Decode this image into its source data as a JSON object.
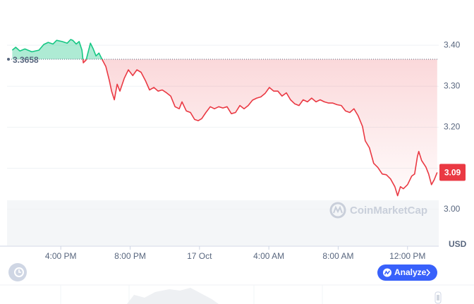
{
  "chart_data": {
    "type": "line",
    "x": [
      13.2,
      13.4,
      13.64,
      13.93,
      14.33,
      14.74,
      15.02,
      15.27,
      15.55,
      15.76,
      16.08,
      16.37,
      16.57,
      16.69,
      16.89,
      17.06,
      17.22,
      17.3,
      17.46,
      17.71,
      17.87,
      18.03,
      18.2,
      18.4,
      18.6,
      18.8,
      18.93,
      19.09,
      19.25,
      19.41,
      19.66,
      19.9,
      20.15,
      20.39,
      20.63,
      20.88,
      21.12,
      21.37,
      21.61,
      21.85,
      22.1,
      22.34,
      22.59,
      22.83,
      22.99,
      23.24,
      23.48,
      23.72,
      23.93,
      24.13,
      24.37,
      24.62,
      24.86,
      25.11,
      25.35,
      25.59,
      25.84,
      26.08,
      26.33,
      26.57,
      26.81,
      27.06,
      27.3,
      27.54,
      27.79,
      28.03,
      28.28,
      28.52,
      28.76,
      29.01,
      29.25,
      29.5,
      29.74,
      29.98,
      30.23,
      30.47,
      30.72,
      30.96,
      31.2,
      31.45,
      31.69,
      31.93,
      32.18,
      32.42,
      32.67,
      32.91,
      33.15,
      33.4,
      33.56,
      33.8,
      34.05,
      34.29,
      34.54,
      34.78,
      35.02,
      35.27,
      35.43,
      35.59,
      35.76,
      36.0,
      36.24,
      36.41,
      36.57,
      36.65,
      36.81,
      37.06,
      37.22,
      37.38,
      37.54,
      37.71
    ],
    "values": [
      3.388,
      3.395,
      3.386,
      3.391,
      3.384,
      3.388,
      3.402,
      3.407,
      3.403,
      3.412,
      3.409,
      3.405,
      3.414,
      3.412,
      3.403,
      3.409,
      3.388,
      3.357,
      3.364,
      3.405,
      3.391,
      3.374,
      3.381,
      3.364,
      3.348,
      3.314,
      3.288,
      3.267,
      3.305,
      3.288,
      3.319,
      3.34,
      3.326,
      3.34,
      3.334,
      3.314,
      3.291,
      3.297,
      3.288,
      3.291,
      3.284,
      3.276,
      3.25,
      3.245,
      3.262,
      3.24,
      3.236,
      3.219,
      3.216,
      3.221,
      3.236,
      3.25,
      3.245,
      3.25,
      3.247,
      3.25,
      3.233,
      3.236,
      3.253,
      3.245,
      3.253,
      3.266,
      3.271,
      3.274,
      3.283,
      3.297,
      3.288,
      3.288,
      3.276,
      3.284,
      3.267,
      3.257,
      3.253,
      3.267,
      3.262,
      3.271,
      3.262,
      3.267,
      3.262,
      3.259,
      3.259,
      3.255,
      3.253,
      3.24,
      3.236,
      3.245,
      3.228,
      3.202,
      3.167,
      3.15,
      3.112,
      3.102,
      3.086,
      3.084,
      3.074,
      3.055,
      3.033,
      3.055,
      3.05,
      3.06,
      3.081,
      3.086,
      3.129,
      3.141,
      3.119,
      3.103,
      3.086,
      3.06,
      3.072,
      3.09
    ],
    "xlim": [
      12.9,
      37.8
    ],
    "xticks": [
      {
        "value": 16,
        "label": "4:00 PM"
      },
      {
        "value": 20,
        "label": "8:00 PM"
      },
      {
        "value": 24,
        "label": "17 Oct"
      },
      {
        "value": 28,
        "label": "4:00 AM"
      },
      {
        "value": 32,
        "label": "8:00 AM"
      },
      {
        "value": 36,
        "label": "12:00 PM"
      }
    ],
    "ylim": [
      2.91,
      3.5
    ],
    "yticks": [
      {
        "value": 3,
        "label": "3.00"
      },
      {
        "value": 3.1,
        "label": "3.10"
      },
      {
        "value": 3.2,
        "label": "3.20"
      },
      {
        "value": 3.3,
        "label": "3.30"
      },
      {
        "value": 3.4,
        "label": "3.40"
      }
    ],
    "baseline": 3.3658,
    "last_price": 3.09,
    "y_unit": "USD",
    "watermark": "CoinMarketCap",
    "color_up": "#16c784",
    "color_down": "#ea3943",
    "grid": true
  },
  "ui": {
    "analyze_button": "Analyze"
  }
}
